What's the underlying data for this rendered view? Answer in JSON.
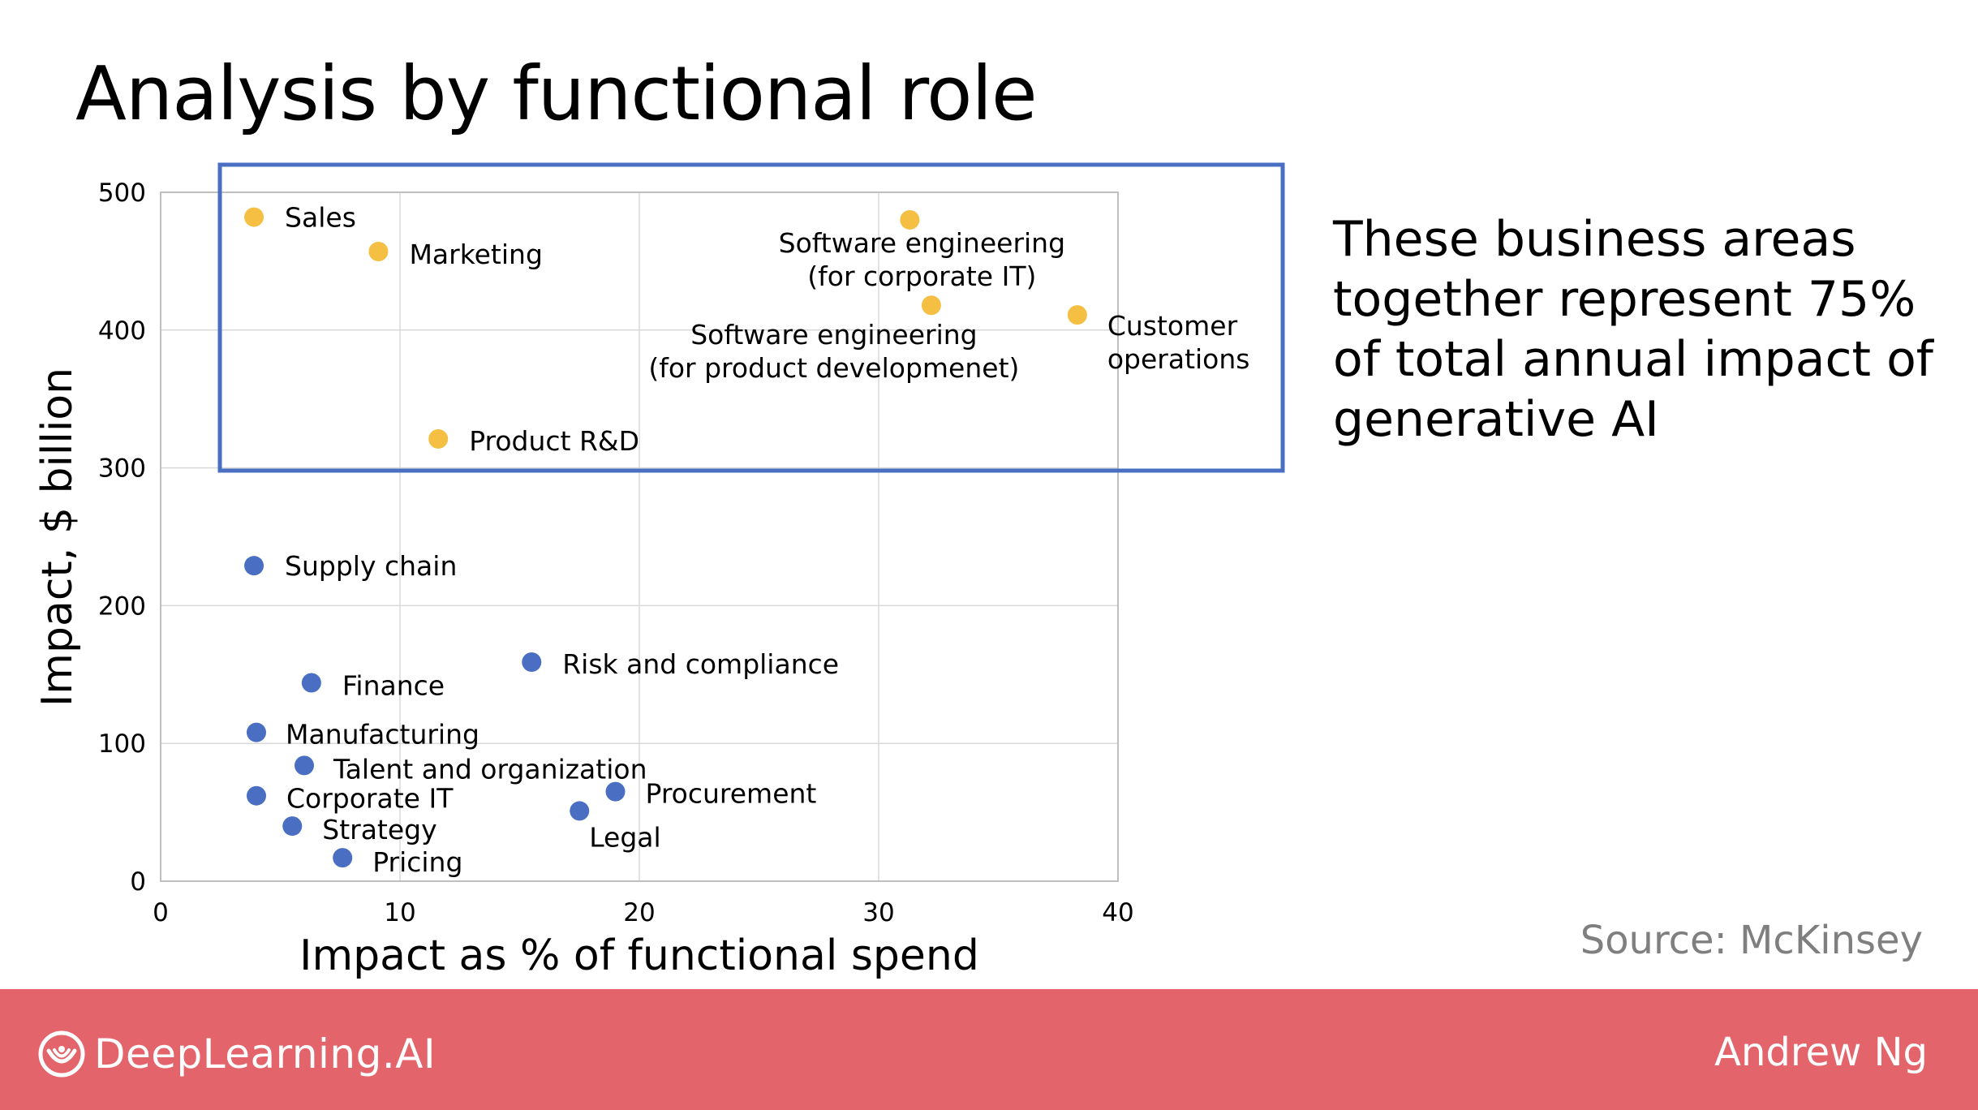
{
  "slide": {
    "title": "Analysis by functional role",
    "callout": "These business areas together represent 75% of total annual impact of generative AI",
    "source": "Source: McKinsey"
  },
  "footer": {
    "brand": "DeepLearning.AI",
    "author": "Andrew Ng",
    "background": "#e3646a",
    "logo_icon": "deeplearning-logo-icon"
  },
  "chart_data": {
    "type": "scatter",
    "title": "",
    "xlabel": "Impact as % of functional spend",
    "ylabel": "Impact, $ billion",
    "xlim": [
      0,
      40
    ],
    "ylim": [
      0,
      500
    ],
    "xticks": [
      0,
      10,
      20,
      30,
      40
    ],
    "yticks": [
      0,
      100,
      200,
      300,
      400,
      500
    ],
    "grid": true,
    "colors": {
      "highlighted": "#f4bf42",
      "other": "#4a6fc2",
      "box": "#4a6fc2"
    },
    "points": [
      {
        "label": [
          "Sales"
        ],
        "x": 3.9,
        "y": 482,
        "group": "highlighted"
      },
      {
        "label": [
          "Marketing"
        ],
        "x": 9.1,
        "y": 457,
        "group": "highlighted"
      },
      {
        "label": [
          "Software engineering",
          "(for corporate IT)"
        ],
        "x": 31.3,
        "y": 480,
        "group": "highlighted"
      },
      {
        "label": [
          "Software engineering",
          "(for product developmenet)"
        ],
        "x": 32.2,
        "y": 418,
        "group": "highlighted"
      },
      {
        "label": [
          "Customer",
          "operations"
        ],
        "x": 38.3,
        "y": 411,
        "group": "highlighted"
      },
      {
        "label": [
          "Product R&D"
        ],
        "x": 11.6,
        "y": 321,
        "group": "highlighted"
      },
      {
        "label": [
          "Supply chain"
        ],
        "x": 3.9,
        "y": 229,
        "group": "other"
      },
      {
        "label": [
          "Risk and compliance"
        ],
        "x": 15.5,
        "y": 159,
        "group": "other"
      },
      {
        "label": [
          "Finance"
        ],
        "x": 6.3,
        "y": 144,
        "group": "other"
      },
      {
        "label": [
          "Manufacturing"
        ],
        "x": 4.0,
        "y": 108,
        "group": "other"
      },
      {
        "label": [
          "Talent and organization"
        ],
        "x": 6.0,
        "y": 84,
        "group": "other"
      },
      {
        "label": [
          "Corporate IT"
        ],
        "x": 4.0,
        "y": 62,
        "group": "other"
      },
      {
        "label": [
          "Procurement"
        ],
        "x": 19.0,
        "y": 65,
        "group": "other"
      },
      {
        "label": [
          "Legal"
        ],
        "x": 17.5,
        "y": 51,
        "group": "other"
      },
      {
        "label": [
          "Strategy"
        ],
        "x": 5.5,
        "y": 40,
        "group": "other"
      },
      {
        "label": [
          "Pricing"
        ],
        "x": 7.6,
        "y": 17,
        "group": "other"
      }
    ]
  }
}
